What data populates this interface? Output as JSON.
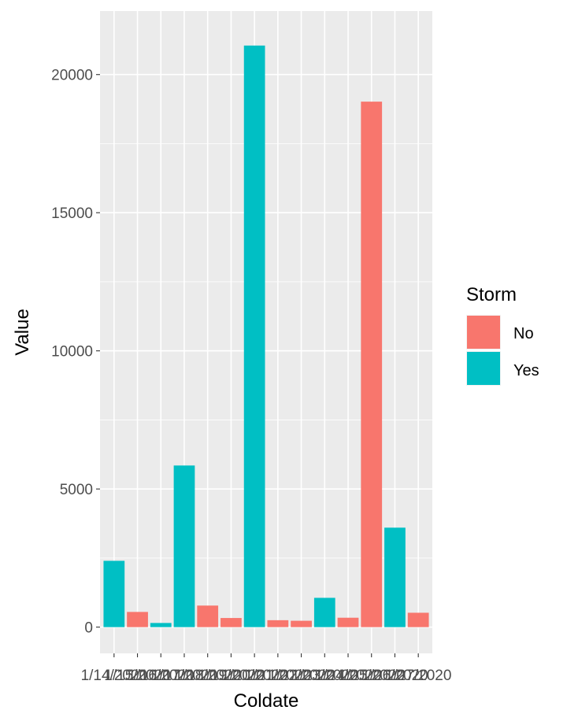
{
  "chart_data": {
    "type": "bar",
    "title": "",
    "xlabel": "Coldate",
    "ylabel": "Value",
    "ylim": [
      -950,
      22300
    ],
    "yticks": [
      0,
      5000,
      10000,
      15000,
      20000
    ],
    "ytick_labels": [
      "0",
      "5000",
      "10000",
      "15000",
      "20000"
    ],
    "grid": true,
    "legend": {
      "title": "Storm",
      "position": "right",
      "entries": [
        {
          "label": "No",
          "color": "#F8766D"
        },
        {
          "label": "Yes",
          "color": "#00BFC4"
        }
      ]
    },
    "categories": [
      "1/14/2020",
      "1/15/2020",
      "1/16/2020",
      "1/17/2020",
      "1/18/2020",
      "1/19/2020",
      "1/20/2020",
      "1/21/2020",
      "1/22/2020",
      "1/23/2020",
      "1/24/2020",
      "1/25/2020",
      "1/26/2020",
      "1/27/2020"
    ],
    "values": [
      2400,
      550,
      150,
      5850,
      780,
      330,
      21050,
      250,
      230,
      1060,
      340,
      19020,
      3600,
      520
    ],
    "storm": [
      "Yes",
      "No",
      "Yes",
      "Yes",
      "No",
      "No",
      "Yes",
      "No",
      "No",
      "Yes",
      "No",
      "No",
      "Yes",
      "No"
    ]
  }
}
